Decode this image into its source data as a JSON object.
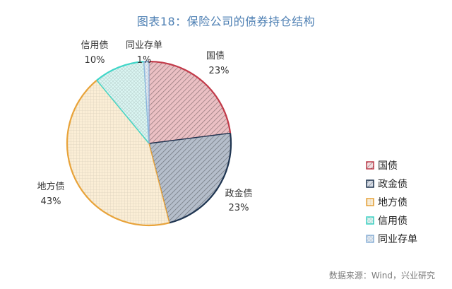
{
  "title": "图表18：保险公司的债券持仓结构",
  "source": "数据来源：Wind，兴业研究",
  "chart_data": {
    "type": "pie",
    "title": "图表18：保险公司的债券持仓结构",
    "legend_position": "right",
    "slices": [
      {
        "name": "国债",
        "value": 23,
        "label": "23%",
        "color": "#c23b4a",
        "fill": "#f4dde0"
      },
      {
        "name": "政金债",
        "value": 23,
        "label": "23%",
        "color": "#1f3551",
        "fill": "#d6dce6"
      },
      {
        "name": "地方债",
        "value": 43,
        "label": "43%",
        "color": "#e8a33a",
        "fill": "#fbeed6"
      },
      {
        "name": "信用债",
        "value": 10,
        "label": "10%",
        "color": "#3fd6c8",
        "fill": "#dcf7f4"
      },
      {
        "name": "同业存单",
        "value": 1,
        "label": "1%",
        "color": "#8fb6de",
        "fill": "#e2ecf6"
      }
    ]
  }
}
